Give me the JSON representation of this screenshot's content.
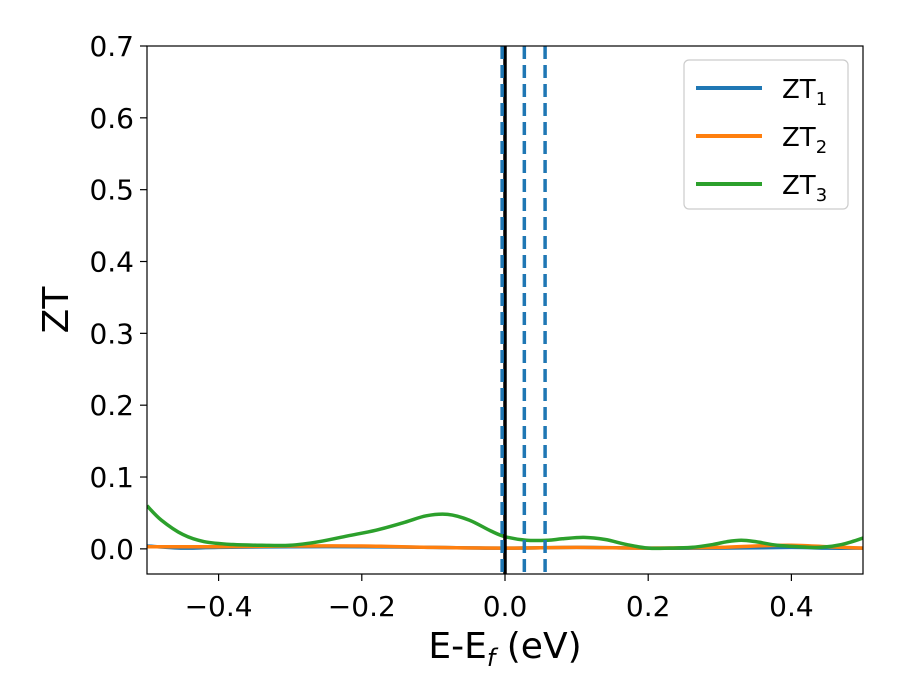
{
  "chart_data": {
    "type": "line",
    "xlabel": {
      "main": "E-E",
      "sub": "f",
      "rest": " (eV)"
    },
    "ylabel": "ZT",
    "xlim": [
      -0.5,
      0.5
    ],
    "ylim": [
      -0.035,
      0.7
    ],
    "xticks": [
      -0.4,
      -0.2,
      0.0,
      0.2,
      0.4
    ],
    "xtick_labels": [
      "−0.4",
      "−0.2",
      "0.0",
      "0.2",
      "0.4"
    ],
    "yticks": [
      0.0,
      0.1,
      0.2,
      0.3,
      0.4,
      0.5,
      0.6,
      0.7
    ],
    "ytick_labels": [
      "0.0",
      "0.1",
      "0.2",
      "0.3",
      "0.4",
      "0.5",
      "0.6",
      "0.7"
    ],
    "grid": false,
    "legend_position": "top-right",
    "series": [
      {
        "name": "ZT",
        "name_sub": "1",
        "color": "#1f77b4",
        "x": [
          -0.5,
          -0.45,
          -0.4,
          -0.3,
          -0.2,
          -0.1,
          0.0,
          0.1,
          0.2,
          0.3,
          0.4,
          0.45,
          0.5
        ],
        "y": [
          0.004,
          0.001,
          0.002,
          0.003,
          0.003,
          0.002,
          0.001,
          0.002,
          0.001,
          0.001,
          0.002,
          0.001,
          0.001
        ]
      },
      {
        "name": "ZT",
        "name_sub": "2",
        "color": "#ff7f0e",
        "x": [
          -0.5,
          -0.4,
          -0.3,
          -0.2,
          -0.1,
          0.0,
          0.1,
          0.2,
          0.3,
          0.35,
          0.4,
          0.45,
          0.5
        ],
        "y": [
          0.003,
          0.003,
          0.004,
          0.004,
          0.002,
          0.001,
          0.002,
          0.001,
          0.002,
          0.004,
          0.005,
          0.003,
          0.001
        ]
      },
      {
        "name": "ZT",
        "name_sub": "3",
        "color": "#2ca02c",
        "x": [
          -0.5,
          -0.48,
          -0.45,
          -0.42,
          -0.38,
          -0.34,
          -0.3,
          -0.26,
          -0.22,
          -0.18,
          -0.14,
          -0.11,
          -0.08,
          -0.05,
          -0.02,
          0.0,
          0.03,
          0.06,
          0.08,
          0.11,
          0.14,
          0.17,
          0.2,
          0.23,
          0.26,
          0.29,
          0.31,
          0.33,
          0.35,
          0.38,
          0.41,
          0.44,
          0.47,
          0.5
        ],
        "y": [
          0.06,
          0.04,
          0.02,
          0.01,
          0.006,
          0.005,
          0.005,
          0.01,
          0.018,
          0.026,
          0.037,
          0.046,
          0.048,
          0.04,
          0.025,
          0.017,
          0.012,
          0.012,
          0.014,
          0.016,
          0.013,
          0.006,
          0.001,
          0.001,
          0.002,
          0.006,
          0.01,
          0.012,
          0.01,
          0.005,
          0.003,
          0.002,
          0.006,
          0.015
        ]
      }
    ],
    "vlines": [
      {
        "x": 0.0,
        "style": "solid",
        "color": "#000000"
      },
      {
        "x": -0.004,
        "style": "dashed",
        "color": "#1f77b4"
      },
      {
        "x": 0.027,
        "style": "dashed",
        "color": "#1f77b4"
      },
      {
        "x": 0.056,
        "style": "dashed",
        "color": "#1f77b4"
      }
    ]
  }
}
